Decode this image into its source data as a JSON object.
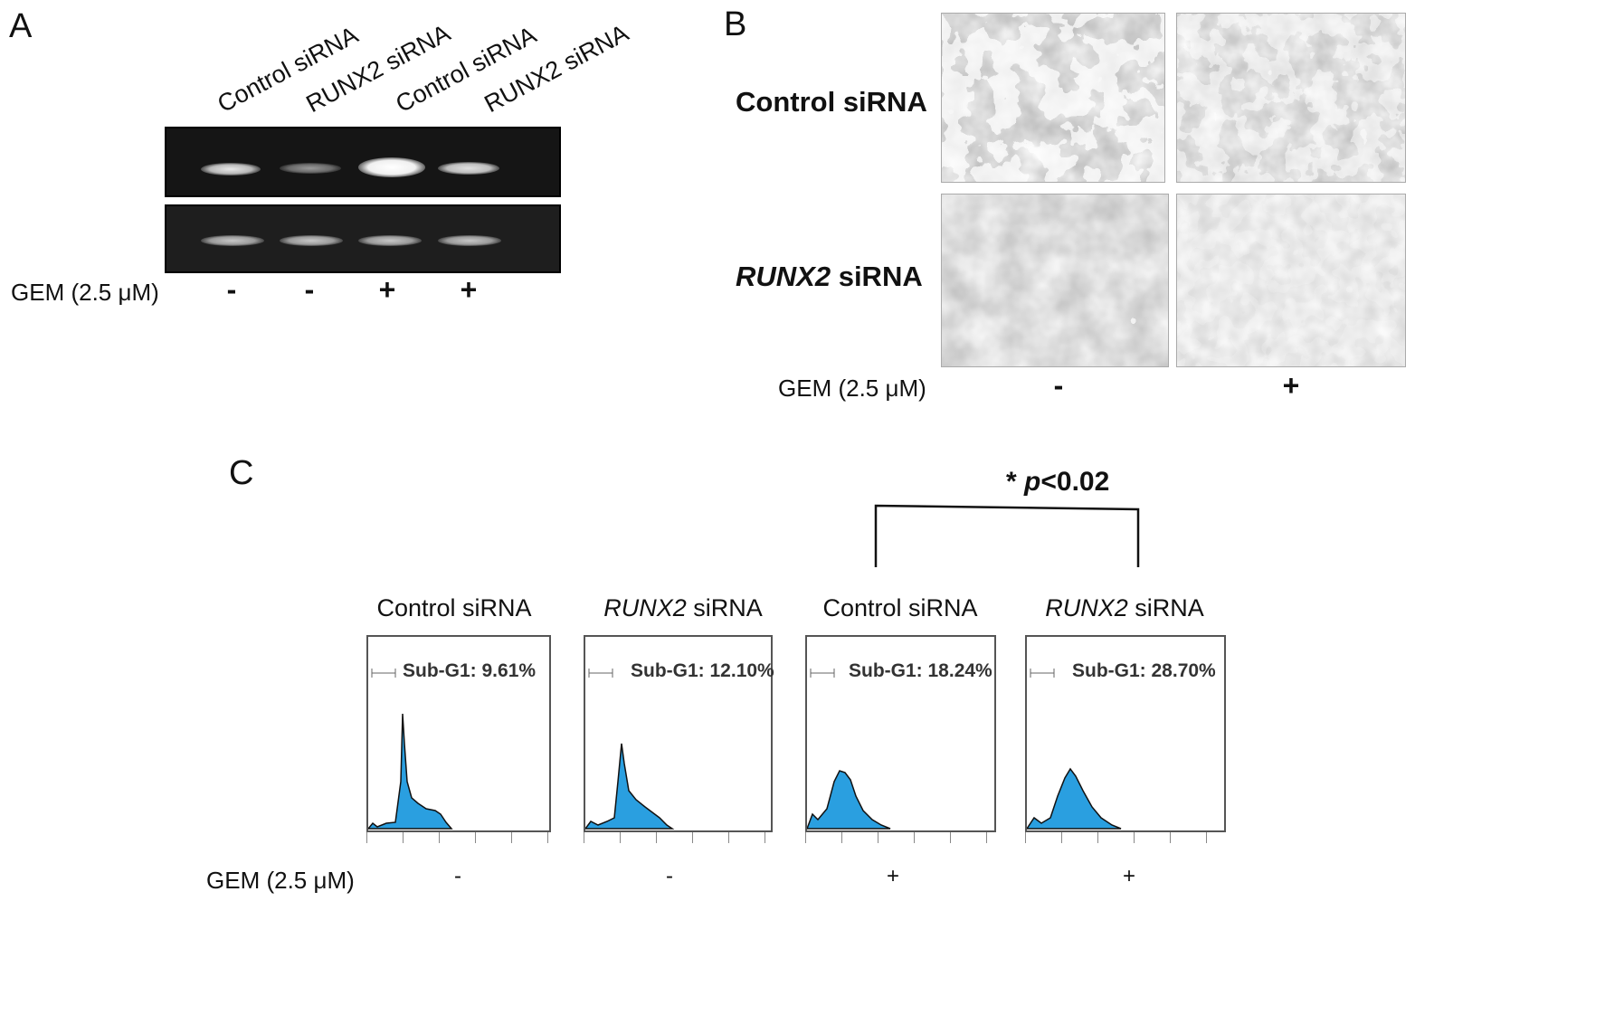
{
  "panel_a": {
    "letter": "A",
    "lanes": [
      "Control siRNA",
      "RUNX2 siRNA",
      "Control siRNA",
      "RUNX2 siRNA"
    ],
    "gem_label": "GEM (2.5 μM)",
    "gem_signs": [
      "-",
      "-",
      "+",
      "+"
    ]
  },
  "panel_b": {
    "letter": "B",
    "row_labels": {
      "control_prefix": "Control",
      "control_suffix": " siRNA",
      "runx2_prefix": "RUNX2",
      "runx2_suffix": " siRNA"
    },
    "gem_label": "GEM (2.5 μM)",
    "gem_signs": [
      "-",
      "+"
    ]
  },
  "panel_c": {
    "letter": "C",
    "significance": {
      "star": "*",
      "p_italic": "p",
      "p_rest": "<0.02"
    },
    "histograms": [
      {
        "title_prefix": "Control",
        "title_italic": false,
        "title_suffix": " siRNA",
        "subg1": "Sub-G1: 9.61%",
        "gem": "-"
      },
      {
        "title_prefix": "RUNX2",
        "title_italic": true,
        "title_suffix": " siRNA",
        "subg1": "Sub-G1: 12.10%",
        "gem": "-"
      },
      {
        "title_prefix": "Control",
        "title_italic": false,
        "title_suffix": " siRNA",
        "subg1": "Sub-G1: 18.24%",
        "gem": "+"
      },
      {
        "title_prefix": "RUNX2",
        "title_italic": true,
        "title_suffix": " siRNA",
        "subg1": "Sub-G1: 28.70%",
        "gem": "+"
      }
    ],
    "gem_label": "GEM (2.5 μM)",
    "fill_color": "#2a9fe0"
  }
}
